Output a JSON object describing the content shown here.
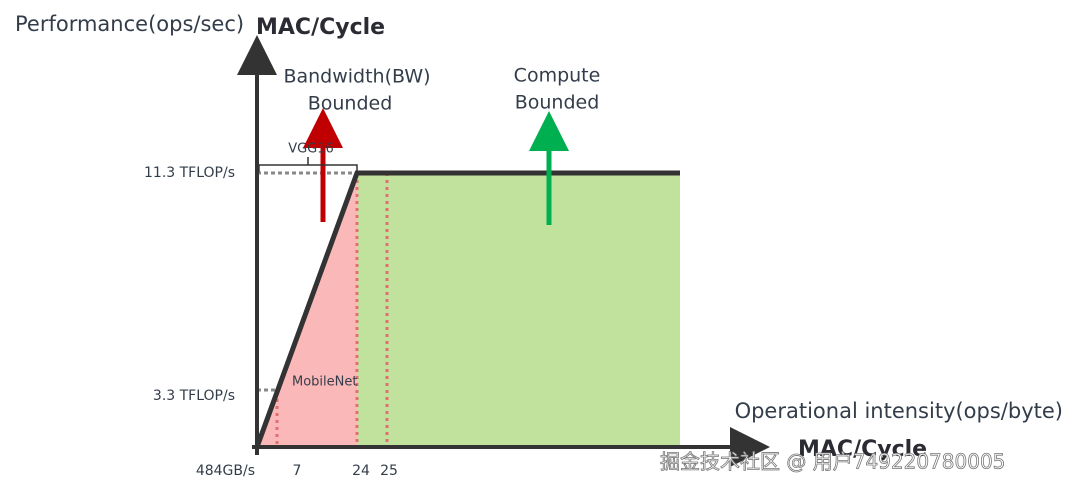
{
  "y_axis": {
    "title": "Performance(ops/sec)",
    "unit": "MAC/Cycle",
    "ticks": [
      "11.3 TFLOP/s",
      "3.3 TFLOP/s"
    ]
  },
  "x_axis": {
    "title": "Operational intensity(ops/byte)",
    "unit": "MAC/Cycle",
    "ticks": [
      "484GB/s",
      "7",
      "24",
      "25"
    ]
  },
  "regions": {
    "bandwidth": [
      "Bandwidth(BW)",
      "Bounded"
    ],
    "compute": [
      "Compute",
      "Bounded"
    ]
  },
  "models": [
    "VGG16",
    "MobileNet"
  ],
  "watermark": "掘金技术社区 @ 用户749220780005"
}
